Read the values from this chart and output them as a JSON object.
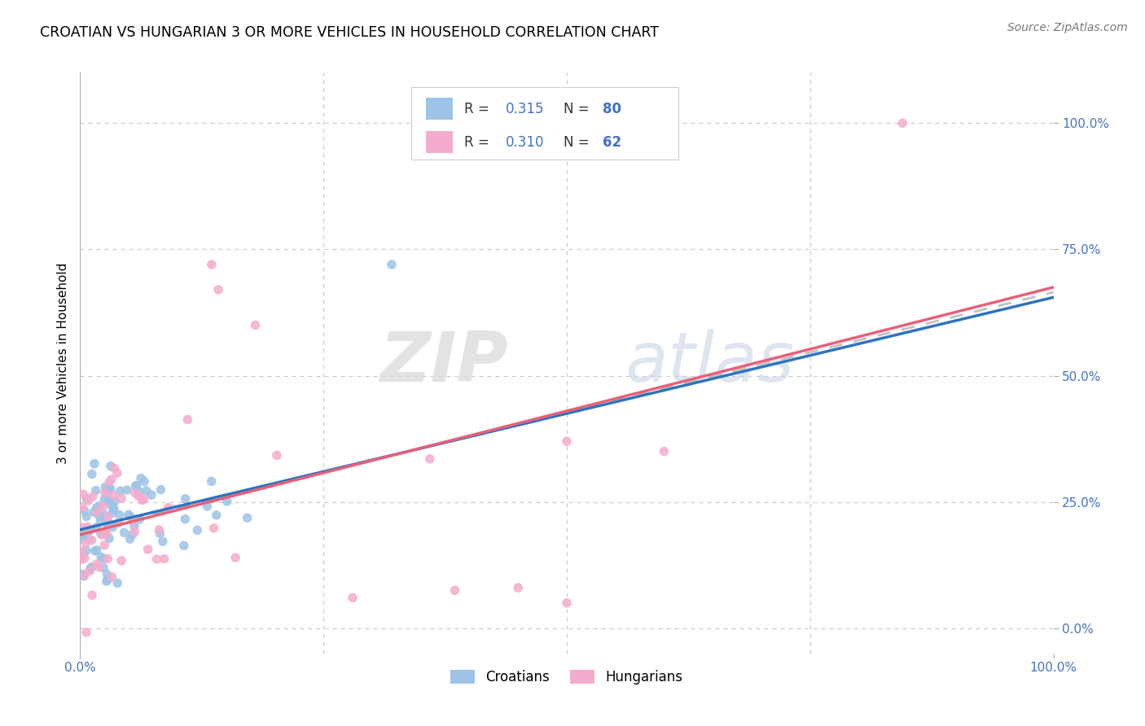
{
  "title": "CROATIAN VS HUNGARIAN 3 OR MORE VEHICLES IN HOUSEHOLD CORRELATION CHART",
  "source": "Source: ZipAtlas.com",
  "ylabel": "3 or more Vehicles in Household",
  "xlim": [
    0,
    1
  ],
  "ylim": [
    -0.05,
    1.1
  ],
  "ytick_labels_right": [
    "0.0%",
    "25.0%",
    "50.0%",
    "75.0%",
    "100.0%"
  ],
  "ytick_positions_right": [
    0.0,
    0.25,
    0.5,
    0.75,
    1.0
  ],
  "xtick_positions": [
    0.0,
    1.0
  ],
  "xtick_labels": [
    "0.0%",
    "100.0%"
  ],
  "croatian_color": "#9dc3e6",
  "hungarian_color": "#f4accd",
  "trendline_croatian_color": "#2e74c0",
  "trendline_hungarian_color": "#e8607a",
  "trendline_dashed_color": "#c0c0c0",
  "R_croatian": 0.315,
  "N_croatian": 80,
  "R_hungarian": 0.31,
  "N_hungarian": 62,
  "watermark_zip": "ZIP",
  "watermark_atlas": "atlas",
  "background_color": "#ffffff",
  "grid_color": "#cccccc",
  "legend_label_croatian": "Croatians",
  "legend_label_hungarian": "Hungarians",
  "tick_color": "#4472c4",
  "trend_intercept_croatian": 0.195,
  "trend_slope_croatian": 0.46,
  "trend_intercept_hungarian": 0.185,
  "trend_slope_hungarian": 0.49,
  "trend_intercept_dashed": 0.19,
  "trend_slope_dashed": 0.475
}
